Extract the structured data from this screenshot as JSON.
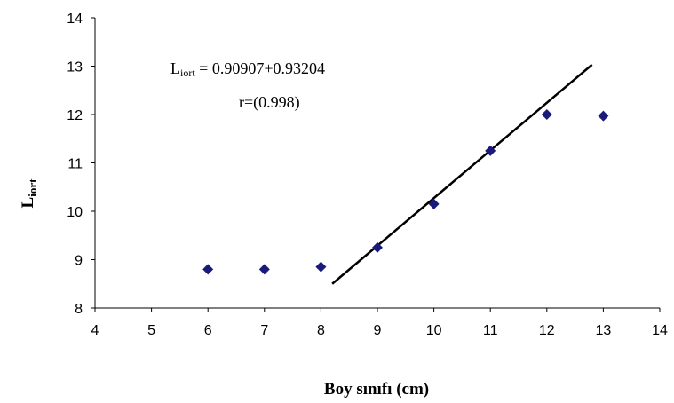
{
  "chart_data": {
    "type": "scatter",
    "xlabel": "Boy sınıfı (cm)",
    "ylabel": {
      "main": "L",
      "sub": "iort"
    },
    "xlim": [
      4,
      14
    ],
    "ylim": [
      8,
      14
    ],
    "xticks": [
      "4",
      "5",
      "6",
      "7",
      "8",
      "9",
      "10",
      "11",
      "12",
      "13",
      "14"
    ],
    "yticks": [
      "8",
      "9",
      "10",
      "11",
      "12",
      "13",
      "14"
    ],
    "grid": false,
    "legend": "none",
    "series": [
      {
        "marker": "diamond",
        "color": "#1a1a7a",
        "x": [
          6,
          7,
          8,
          9,
          10,
          11,
          12,
          13
        ],
        "y": [
          8.8,
          8.8,
          8.85,
          9.25,
          10.15,
          11.25,
          12.0,
          11.97
        ]
      }
    ],
    "trendline": {
      "color": "#000000",
      "x": [
        8.2,
        12.8
      ],
      "y": [
        8.5,
        13.03
      ]
    },
    "annotation": {
      "equation": {
        "lhs_main": "L",
        "lhs_sub": "iort",
        "rhs": " = 0.90907+0.93204"
      },
      "r": "r=(0.998)"
    }
  }
}
